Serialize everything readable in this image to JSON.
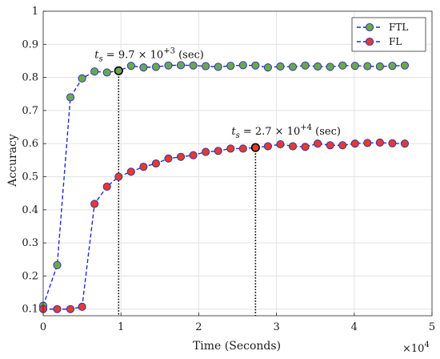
{
  "chart_data": {
    "type": "line",
    "title": "",
    "xlabel": "Time (Seconds)",
    "ylabel": "Accuracy",
    "x_exponent_label": "×10⁴",
    "x_exponent_mantissa": "×10",
    "x_exponent_power": "4",
    "xlim": [
      0,
      5
    ],
    "ylim": [
      0.08,
      1.0
    ],
    "xticks": [
      "0",
      "1",
      "2",
      "3",
      "4",
      "5"
    ],
    "yticks": [
      "0.1",
      "0.2",
      "0.3",
      "0.4",
      "0.5",
      "0.6",
      "0.7",
      "0.8",
      "0.9",
      "1"
    ],
    "grid": true,
    "legend_position": "top-right",
    "series": [
      {
        "name": "FTL",
        "marker_color": "#6aa84f",
        "line_color": "#1f2ad6",
        "x": [
          0.0,
          0.18,
          0.35,
          0.5,
          0.66,
          0.82,
          0.97,
          1.13,
          1.29,
          1.45,
          1.61,
          1.77,
          1.93,
          2.09,
          2.25,
          2.41,
          2.57,
          2.73,
          2.89,
          3.05,
          3.21,
          3.37,
          3.53,
          3.69,
          3.85,
          4.01,
          4.17,
          4.33,
          4.49,
          4.65
        ],
        "y": [
          0.11,
          0.233,
          0.74,
          0.797,
          0.818,
          0.815,
          0.82,
          0.835,
          0.83,
          0.832,
          0.836,
          0.837,
          0.836,
          0.834,
          0.832,
          0.835,
          0.837,
          0.836,
          0.83,
          0.833,
          0.832,
          0.836,
          0.833,
          0.832,
          0.836,
          0.835,
          0.834,
          0.833,
          0.835,
          0.836
        ]
      },
      {
        "name": "FL",
        "marker_color": "#e03c31",
        "line_color": "#1f2ad6",
        "x": [
          0.0,
          0.18,
          0.35,
          0.5,
          0.66,
          0.82,
          0.97,
          1.13,
          1.29,
          1.45,
          1.61,
          1.77,
          1.93,
          2.09,
          2.25,
          2.41,
          2.57,
          2.73,
          2.89,
          3.05,
          3.21,
          3.37,
          3.53,
          3.69,
          3.85,
          4.01,
          4.17,
          4.33,
          4.49,
          4.65
        ],
        "y": [
          0.1,
          0.1,
          0.1,
          0.107,
          0.418,
          0.47,
          0.5,
          0.515,
          0.53,
          0.54,
          0.555,
          0.56,
          0.565,
          0.575,
          0.578,
          0.585,
          0.585,
          0.588,
          0.592,
          0.598,
          0.592,
          0.59,
          0.6,
          0.595,
          0.595,
          0.6,
          0.602,
          0.603,
          0.601,
          0.6
        ]
      }
    ],
    "annotations": [
      {
        "series": "FTL",
        "x": 0.97,
        "y": 0.82,
        "label_var": "t",
        "label_sub": "s",
        "label_body": " = 9.7 × 10",
        "label_sup": "+3",
        "label_unit": " (sec)"
      },
      {
        "series": "FL",
        "x": 2.73,
        "y": 0.588,
        "label_var": "t",
        "label_sub": "s",
        "label_body": " = 2.7 × 10",
        "label_sup": "+4",
        "label_unit": " (sec)"
      }
    ]
  }
}
